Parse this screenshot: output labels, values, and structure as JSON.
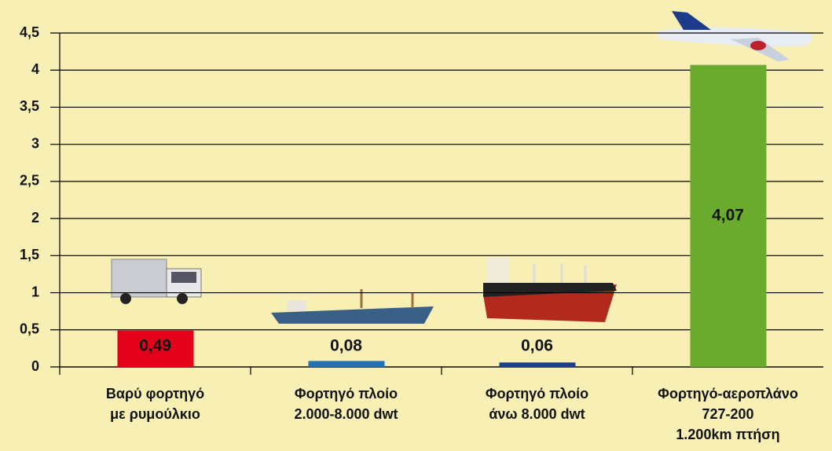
{
  "chart_data": {
    "type": "bar",
    "categories": [
      [
        "Βαρύ φορτηγό",
        "με ρυμούλκιο"
      ],
      [
        "Φορτηγό πλοίο",
        "2.000-8.000 dwt"
      ],
      [
        "Φορτηγό πλοίο",
        "άνω 8.000 dwt"
      ],
      [
        "Φορτηγό-αεροπλάνο",
        "727-200",
        "1.200km πτήση"
      ]
    ],
    "values": [
      0.49,
      0.08,
      0.06,
      4.07
    ],
    "value_labels": [
      "0,49",
      "0,08",
      "0,06",
      "4,07"
    ],
    "colors": [
      "#e2001a",
      "#1f72b8",
      "#1b3f8e",
      "#6aab2f"
    ],
    "ylim": [
      0,
      4.5
    ],
    "yticks": [
      0,
      {
        "value": 0.5,
        "label": "0,5"
      },
      1,
      {
        "value": 1.5,
        "label": "1,5"
      },
      2,
      {
        "value": 2.5,
        "label": "2,5"
      },
      3,
      {
        "value": 3.5,
        "label": "3,5"
      },
      4,
      {
        "value": 4.5,
        "label": "4,5"
      }
    ],
    "grid": true
  }
}
